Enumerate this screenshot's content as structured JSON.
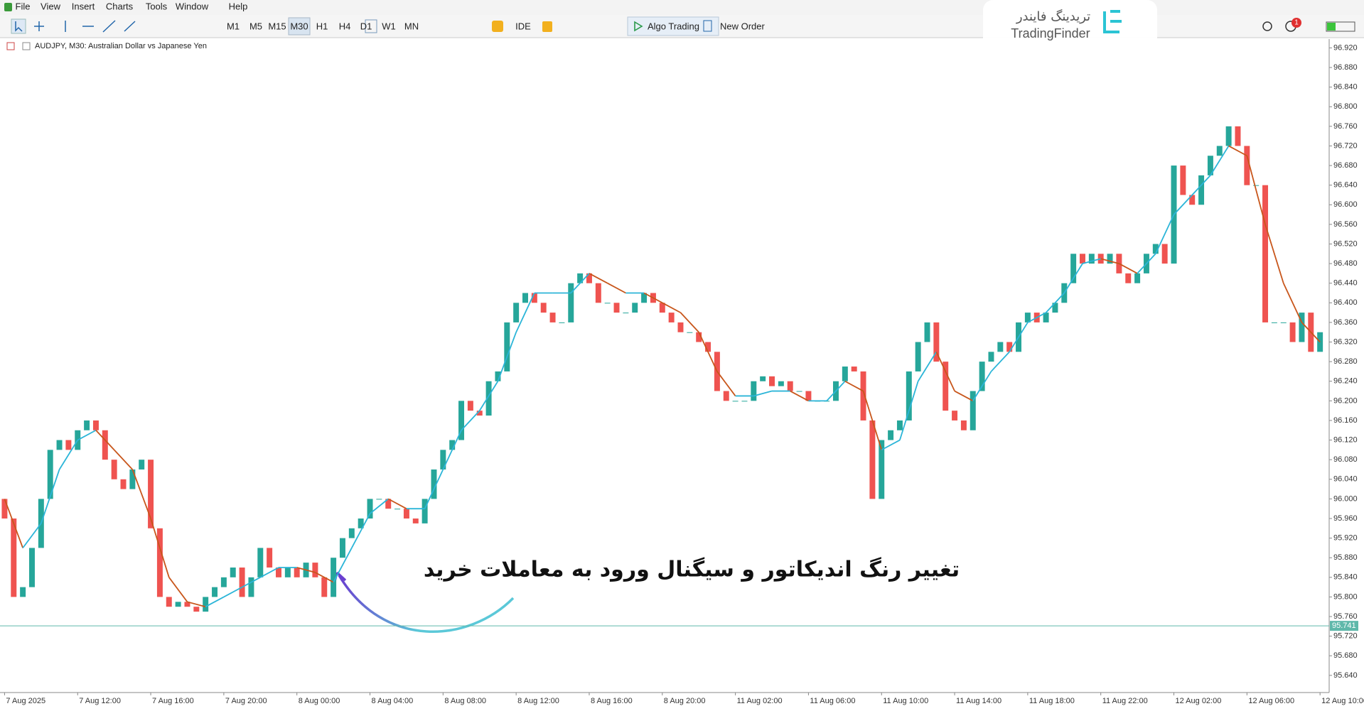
{
  "menu": [
    "File",
    "View",
    "Insert",
    "Charts",
    "Tools",
    "Window",
    "Help"
  ],
  "toolbar": {
    "timeframes": [
      "M1",
      "M5",
      "M15",
      "M30",
      "H1",
      "H4",
      "D1",
      "W1",
      "MN"
    ],
    "active": "M30",
    "ide": "IDE",
    "algo": "Algo Trading",
    "order": "New Order"
  },
  "logo": {
    "fa": "تریدینگ فایندر",
    "en": "TradingFinder"
  },
  "notification_count": 1,
  "chart_data": {
    "type": "candlestick",
    "title": "AUDJPY, M30:  Australian Dollar vs Japanese Yen",
    "annotation": "تغییر رنگ اندیکاتور و سیگنال ورود به معاملات خرید",
    "open": [
      96,
      95.96,
      95.8,
      95.82,
      95.9,
      96.0,
      96.1,
      96.12,
      96.1,
      96.14,
      96.16,
      96.14,
      96.08,
      96.04,
      96.02,
      96.06,
      96.08,
      95.94,
      95.8,
      95.78,
      95.79,
      95.78,
      95.77,
      95.8,
      95.82,
      95.84,
      95.86,
      95.8,
      95.84,
      95.9,
      95.86,
      95.84,
      95.86,
      95.84,
      95.87,
      95.84,
      95.8,
      95.88,
      95.92,
      95.94,
      95.96,
      96.0,
      96.0,
      95.98,
      95.98,
      95.96,
      95.95,
      96.0,
      96.06,
      96.1,
      96.12,
      96.2,
      96.18,
      96.17,
      96.24,
      96.26,
      96.36,
      96.4,
      96.42,
      96.4,
      96.38,
      96.36,
      96.36,
      96.44,
      96.46,
      96.44,
      96.4,
      96.4,
      96.38,
      96.38,
      96.4,
      96.42,
      96.4,
      96.38,
      96.36,
      96.34,
      96.34,
      96.32,
      96.3,
      96.22,
      96.2,
      96.2,
      96.2,
      96.24,
      96.25,
      96.23,
      96.24,
      96.22,
      96.22,
      96.2,
      96.2,
      96.2,
      96.24,
      96.27,
      96.26,
      96.16,
      96.0,
      96.12,
      96.14,
      96.16,
      96.26,
      96.32,
      96.36,
      96.28,
      96.18,
      96.16,
      96.14,
      96.22,
      96.28,
      96.3,
      96.32,
      96.3,
      96.36,
      96.38,
      96.36,
      96.38,
      96.4,
      96.44,
      96.5,
      96.48,
      96.5,
      96.48,
      96.5,
      96.46,
      96.44,
      96.46,
      96.5,
      96.52,
      96.48,
      96.68,
      96.62,
      96.6,
      96.66,
      96.7,
      96.72,
      96.76,
      96.72,
      96.64,
      96.64,
      96.36,
      96.36,
      96.36,
      96.32,
      96.38,
      96.3
    ],
    "close": [
      95.96,
      95.8,
      95.82,
      95.9,
      96.0,
      96.1,
      96.12,
      96.1,
      96.14,
      96.16,
      96.14,
      96.08,
      96.04,
      96.02,
      96.06,
      96.08,
      95.94,
      95.8,
      95.78,
      95.79,
      95.78,
      95.77,
      95.8,
      95.82,
      95.84,
      95.86,
      95.8,
      95.84,
      95.9,
      95.86,
      95.84,
      95.86,
      95.84,
      95.87,
      95.84,
      95.8,
      95.88,
      95.92,
      95.94,
      95.96,
      96.0,
      96.0,
      95.98,
      95.98,
      95.96,
      95.95,
      96.0,
      96.06,
      96.1,
      96.12,
      96.2,
      96.18,
      96.17,
      96.24,
      96.26,
      96.36,
      96.4,
      96.42,
      96.4,
      96.38,
      96.36,
      96.36,
      96.44,
      96.46,
      96.44,
      96.4,
      96.4,
      96.38,
      96.38,
      96.4,
      96.42,
      96.4,
      96.38,
      96.36,
      96.34,
      96.34,
      96.32,
      96.3,
      96.22,
      96.2,
      96.2,
      96.2,
      96.24,
      96.25,
      96.23,
      96.24,
      96.22,
      96.22,
      96.2,
      96.2,
      96.2,
      96.24,
      96.27,
      96.26,
      96.16,
      96.0,
      96.12,
      96.14,
      96.16,
      96.26,
      96.32,
      96.36,
      96.28,
      96.18,
      96.16,
      96.14,
      96.22,
      96.28,
      96.3,
      96.32,
      96.3,
      96.36,
      96.38,
      96.36,
      96.38,
      96.4,
      96.44,
      96.5,
      96.48,
      96.5,
      96.48,
      96.5,
      96.46,
      96.44,
      96.46,
      96.5,
      96.52,
      96.48,
      96.68,
      96.62,
      96.6,
      96.66,
      96.7,
      96.72,
      96.76,
      96.72,
      96.64,
      96.64,
      96.36,
      96.36,
      96.36,
      96.32,
      96.38,
      96.3,
      96.34
    ],
    "up_color": "#26a69a",
    "down_color": "#ef5350",
    "indicator": {
      "x": [
        0,
        2,
        4,
        6,
        8,
        10,
        12,
        14,
        16,
        18,
        20,
        22,
        24,
        26,
        28,
        30,
        32,
        34,
        36,
        38,
        40,
        42,
        44,
        46,
        48,
        50,
        52,
        54,
        56,
        58,
        60,
        62,
        64,
        66,
        68,
        70,
        72,
        74,
        76,
        78,
        80,
        82,
        84,
        86,
        88,
        90,
        92,
        94,
        96,
        98,
        100,
        102,
        104,
        106,
        108,
        110,
        112,
        114,
        116,
        118,
        120,
        122,
        124,
        126,
        128,
        130,
        132,
        134,
        136,
        138,
        140,
        142,
        144
      ],
      "values": [
        96.0,
        95.9,
        95.95,
        96.06,
        96.12,
        96.14,
        96.1,
        96.06,
        95.96,
        95.84,
        95.79,
        95.78,
        95.8,
        95.82,
        95.84,
        95.86,
        95.86,
        95.85,
        95.83,
        95.9,
        95.97,
        96.0,
        95.98,
        95.98,
        96.06,
        96.14,
        96.18,
        96.24,
        96.34,
        96.42,
        96.42,
        96.42,
        96.46,
        96.44,
        96.42,
        96.42,
        96.4,
        96.38,
        96.34,
        96.26,
        96.21,
        96.21,
        96.22,
        96.22,
        96.2,
        96.2,
        96.24,
        96.22,
        96.1,
        96.12,
        96.24,
        96.3,
        96.22,
        96.2,
        96.26,
        96.3,
        96.36,
        96.38,
        96.42,
        96.48,
        96.49,
        96.48,
        96.46,
        96.5,
        96.58,
        96.62,
        96.66,
        96.72,
        96.7,
        96.56,
        96.44,
        96.36,
        96.32
      ],
      "rise_color": "#2bb5d8",
      "fall_color": "#c8561b"
    },
    "current_price": {
      "value": 95.741,
      "label": "95.741"
    },
    "current_price_color": "#5fb8aa",
    "xlim": [
      -0.5,
      145
    ],
    "xticks": [
      {
        "value": 0,
        "label": "7 Aug 2025"
      },
      {
        "value": 8,
        "label": "7 Aug 12:00"
      },
      {
        "value": 16,
        "label": "7 Aug 16:00"
      },
      {
        "value": 24,
        "label": "7 Aug 20:00"
      },
      {
        "value": 32,
        "label": "8 Aug 00:00"
      },
      {
        "value": 40,
        "label": "8 Aug 04:00"
      },
      {
        "value": 48,
        "label": "8 Aug 08:00"
      },
      {
        "value": 56,
        "label": "8 Aug 12:00"
      },
      {
        "value": 64,
        "label": "8 Aug 16:00"
      },
      {
        "value": 72,
        "label": "8 Aug 20:00"
      },
      {
        "value": 80,
        "label": "11 Aug 02:00"
      },
      {
        "value": 88,
        "label": "11 Aug 06:00"
      },
      {
        "value": 96,
        "label": "11 Aug 10:00"
      },
      {
        "value": 104,
        "label": "11 Aug 14:00"
      },
      {
        "value": 112,
        "label": "11 Aug 18:00"
      },
      {
        "value": 120,
        "label": "11 Aug 22:00"
      },
      {
        "value": 128,
        "label": "12 Aug 02:00"
      },
      {
        "value": 136,
        "label": "12 Aug 06:00"
      },
      {
        "value": 144,
        "label": "12 Aug 10:00"
      }
    ],
    "ylim": [
      95.605,
      96.938
    ],
    "yticks": [
      {
        "value": 96.92,
        "label": "96.920"
      },
      {
        "value": 96.88,
        "label": "96.880"
      },
      {
        "value": 96.84,
        "label": "96.840"
      },
      {
        "value": 96.8,
        "label": "96.800"
      },
      {
        "value": 96.76,
        "label": "96.760"
      },
      {
        "value": 96.72,
        "label": "96.720"
      },
      {
        "value": 96.68,
        "label": "96.680"
      },
      {
        "value": 96.64,
        "label": "96.640"
      },
      {
        "value": 96.6,
        "label": "96.600"
      },
      {
        "value": 96.56,
        "label": "96.560"
      },
      {
        "value": 96.52,
        "label": "96.520"
      },
      {
        "value": 96.48,
        "label": "96.480"
      },
      {
        "value": 96.44,
        "label": "96.440"
      },
      {
        "value": 96.4,
        "label": "96.400"
      },
      {
        "value": 96.36,
        "label": "96.360"
      },
      {
        "value": 96.32,
        "label": "96.320"
      },
      {
        "value": 96.28,
        "label": "96.280"
      },
      {
        "value": 96.24,
        "label": "96.240"
      },
      {
        "value": 96.2,
        "label": "96.200"
      },
      {
        "value": 96.16,
        "label": "96.160"
      },
      {
        "value": 96.12,
        "label": "96.120"
      },
      {
        "value": 96.08,
        "label": "96.080"
      },
      {
        "value": 96.04,
        "label": "96.040"
      },
      {
        "value": 96,
        "label": "96.000"
      },
      {
        "value": 95.96,
        "label": "95.960"
      },
      {
        "value": 95.92,
        "label": "95.920"
      },
      {
        "value": 95.88,
        "label": "95.880"
      },
      {
        "value": 95.84,
        "label": "95.840"
      },
      {
        "value": 95.8,
        "label": "95.800"
      },
      {
        "value": 95.76,
        "label": "95.760"
      },
      {
        "value": 95.72,
        "label": "95.720"
      },
      {
        "value": 95.68,
        "label": "95.680"
      },
      {
        "value": 95.64,
        "label": "95.640"
      }
    ]
  }
}
